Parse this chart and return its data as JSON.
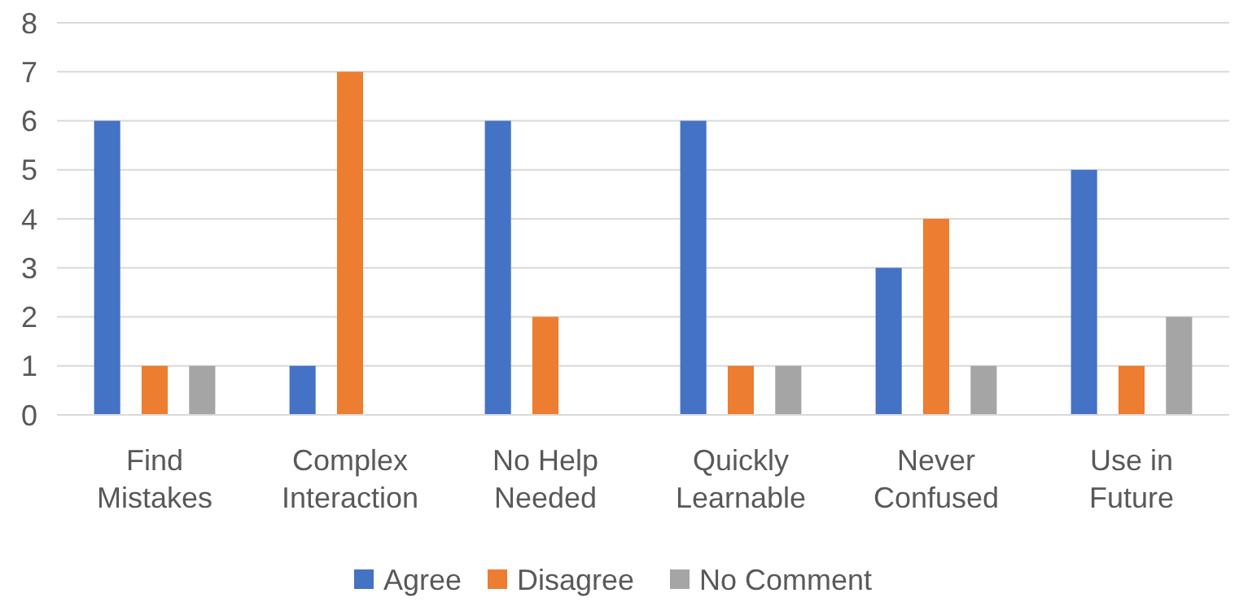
{
  "chart_data": {
    "type": "bar",
    "categories": [
      "Find Mistakes",
      "Complex Interaction",
      "No Help Needed",
      "Quickly Learnable",
      "Never Confused",
      "Use in Future"
    ],
    "series": [
      {
        "name": "Agree",
        "color": "#4472c4",
        "values": [
          6,
          1,
          6,
          6,
          3,
          5
        ]
      },
      {
        "name": "Disagree",
        "color": "#ed7d31",
        "values": [
          1,
          7,
          2,
          1,
          4,
          1
        ]
      },
      {
        "name": "No Comment",
        "color": "#a5a5a5",
        "values": [
          1,
          0,
          0,
          1,
          1,
          2
        ]
      }
    ],
    "ylim": [
      0,
      8
    ],
    "yticks": [
      0,
      1,
      2,
      3,
      4,
      5,
      6,
      7,
      8
    ],
    "grid": "y",
    "legend": "bottom"
  }
}
